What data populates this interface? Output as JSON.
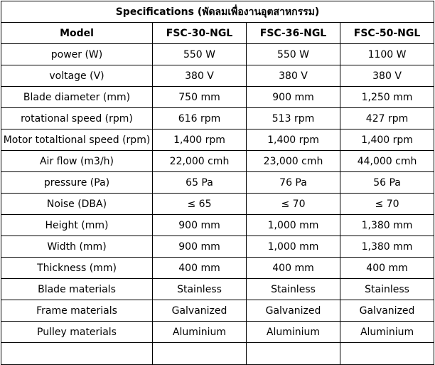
{
  "title": "Specifications (พัดลมเพื่องานอุตสาหกรรม)",
  "header": {
    "label": "Model",
    "models": [
      "FSC-30-NGL",
      "FSC-36-NGL",
      "FSC-50-NGL"
    ]
  },
  "rows": [
    {
      "label": "power (W)",
      "values": [
        "550 W",
        "550 W",
        "1100 W"
      ]
    },
    {
      "label": "voltage  (V)",
      "values": [
        "380 V",
        "380 V",
        "380 V"
      ]
    },
    {
      "label": "Blade diameter (mm)",
      "values": [
        "750 mm",
        "900 mm",
        "1,250 mm"
      ]
    },
    {
      "label": "rotational speed (rpm)",
      "values": [
        "616 rpm",
        "513 rpm",
        "427 rpm"
      ]
    },
    {
      "label": "Motor totaltional speed (rpm)",
      "values": [
        "1,400 rpm",
        "1,400 rpm",
        "1,400 rpm"
      ]
    },
    {
      "label": "Air flow (m3/h)",
      "values": [
        "22,000 cmh",
        "23,000 cmh",
        "44,000 cmh"
      ]
    },
    {
      "label": "pressure (Pa)",
      "values": [
        "65 Pa",
        "76 Pa",
        "56 Pa"
      ]
    },
    {
      "label": "Noise (DBA)",
      "values": [
        "≤ 65",
        "≤ 70",
        "≤ 70"
      ]
    },
    {
      "label": "Height (mm)",
      "values": [
        "900 mm",
        "1,000 mm",
        "1,380 mm"
      ]
    },
    {
      "label": "Width  (mm)",
      "values": [
        "900 mm",
        "1,000 mm",
        "1,380 mm"
      ]
    },
    {
      "label": "Thickness  (mm)",
      "values": [
        "400 mm",
        "400 mm",
        "400 mm"
      ]
    },
    {
      "label": "Blade materials",
      "values": [
        "Stainless",
        "Stainless",
        "Stainless"
      ]
    },
    {
      "label": "Frame materials",
      "values": [
        "Galvanized",
        "Galvanized",
        "Galvanized"
      ]
    },
    {
      "label": "Pulley materials",
      "values": [
        "Aluminium",
        "Aluminium",
        "Aluminium"
      ]
    }
  ]
}
